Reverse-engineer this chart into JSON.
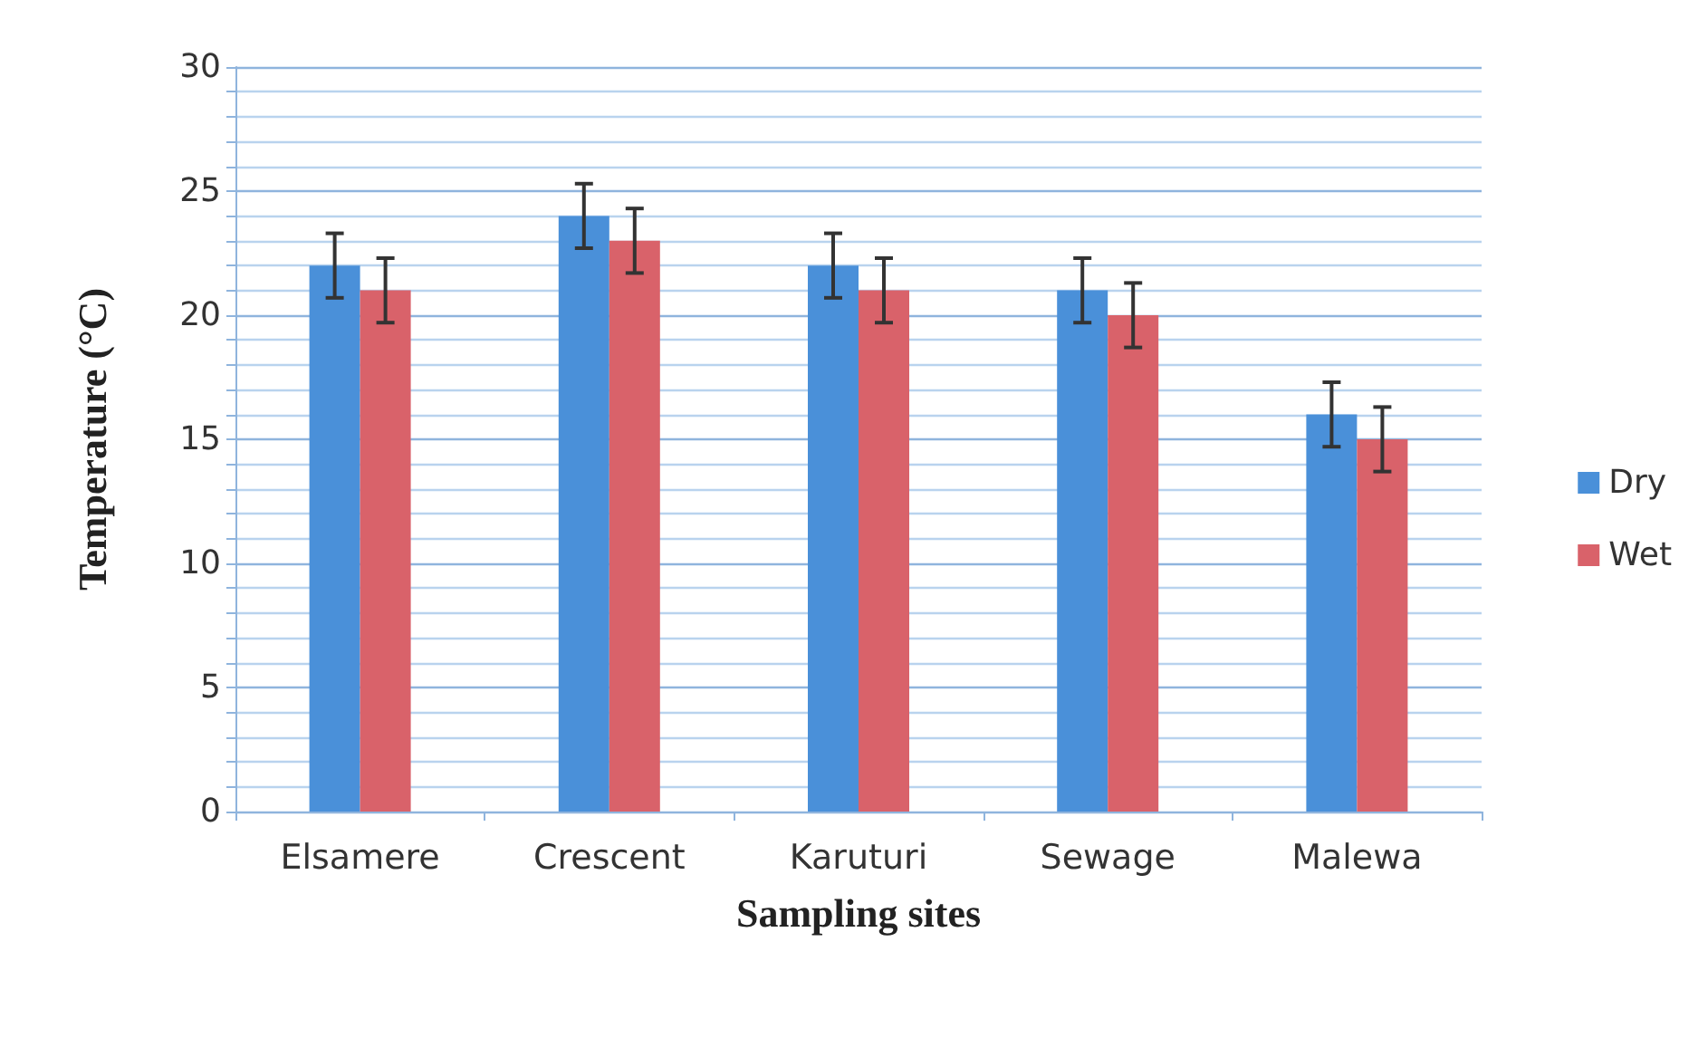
{
  "chart_data": {
    "type": "bar",
    "xlabel": "Sampling sites",
    "ylabel": "Temperature (°C)",
    "categories": [
      "Elsamere",
      "Crescent",
      "Karuturi",
      "Sewage",
      "Malewa"
    ],
    "series": [
      {
        "name": "Dry",
        "color": "#4a90d9",
        "values": [
          22,
          24,
          22,
          21,
          16
        ],
        "errors": [
          1.3,
          1.3,
          1.3,
          1.3,
          1.3
        ]
      },
      {
        "name": "Wet",
        "color": "#d9626a",
        "values": [
          21,
          23,
          21,
          20,
          15
        ],
        "errors": [
          1.3,
          1.3,
          1.3,
          1.3,
          1.3
        ]
      }
    ],
    "ylim": [
      0,
      30
    ],
    "yticks": [
      0,
      {
        "value": 1,
        "label": null
      },
      {
        "value": 2,
        "label": null
      },
      {
        "value": 3,
        "label": null
      },
      {
        "value": 4,
        "label": null
      },
      5,
      {
        "value": 6,
        "label": null
      },
      {
        "value": 7,
        "label": null
      },
      {
        "value": 8,
        "label": null
      },
      {
        "value": 9,
        "label": null
      },
      10,
      {
        "value": 11,
        "label": null
      },
      {
        "value": 12,
        "label": null
      },
      {
        "value": 13,
        "label": null
      },
      {
        "value": 14,
        "label": null
      },
      15,
      {
        "value": 16,
        "label": null
      },
      {
        "value": 17,
        "label": null
      },
      {
        "value": 18,
        "label": null
      },
      {
        "value": 19,
        "label": null
      },
      20,
      {
        "value": 21,
        "label": null
      },
      {
        "value": 22,
        "label": null
      },
      {
        "value": 23,
        "label": null
      },
      {
        "value": 24,
        "label": null
      },
      25,
      {
        "value": 26,
        "label": null
      },
      {
        "value": 27,
        "label": null
      },
      {
        "value": 28,
        "label": null
      },
      {
        "value": 29,
        "label": null
      },
      30
    ],
    "grid": "y",
    "legend": "right"
  }
}
